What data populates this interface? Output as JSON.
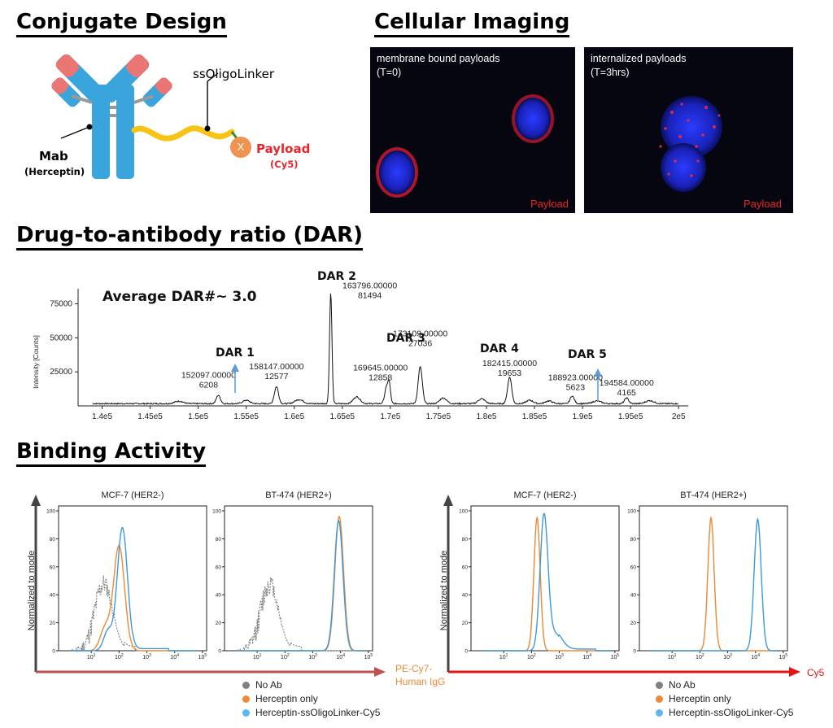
{
  "sections": {
    "conjugate": "Conjugate Design",
    "imaging": "Cellular Imaging",
    "dar": "Drug-to-antibody ratio (DAR)",
    "binding": "Binding Activity"
  },
  "conjugate": {
    "linker": "ssOligoLinker",
    "mab": "Mab",
    "mab_sub": "(Herceptin)",
    "payload": "Payload",
    "payload_sub": "(Cy5)",
    "x_symbol": "X"
  },
  "imaging": {
    "left_line1": "membrane bound payloads",
    "left_line2": "(T=0)",
    "right_line1": "internalized payloads",
    "right_line2": "(T=3hrs)",
    "payload_label": "Payload"
  },
  "colors": {
    "antibody": "#3aa4dd",
    "antibody_tip": "#e97673",
    "linker": "#f7c314",
    "payload": "#f0934e",
    "no_ab": "#808080",
    "herceptin": "#ee8a35",
    "conjugate": "#3e98dc",
    "arrow_left": "#c0504d",
    "arrow_right": "#e41414"
  },
  "dar_chart": {
    "average_label": "Average DAR#~ 3.0",
    "ylabel": "Intensity [Counts]",
    "yticks": [
      "25000",
      "50000",
      "75000"
    ],
    "xticks": [
      "1.4e5",
      "1.45e5",
      "1.5e5",
      "1.55e5",
      "1.6e5",
      "1.65e5",
      "1.7e5",
      "1.75e5",
      "1.8e5",
      "1.85e5",
      "1.9e5",
      "1.95e5",
      "2e5"
    ],
    "dar_labels": [
      "DAR 1",
      "DAR 2",
      "DAR 3",
      "DAR 4",
      "DAR 5"
    ],
    "annotations": [
      {
        "mass": "152097.00000",
        "count": "6208"
      },
      {
        "mass": "158147.00000",
        "count": "12577"
      },
      {
        "mass": "163796.00000",
        "count": "81494"
      },
      {
        "mass": "169645.00000",
        "count": "12858"
      },
      {
        "mass": "173109.00000",
        "count": "27036"
      },
      {
        "mass": "182415.00000",
        "count": "19653"
      },
      {
        "mass": "188923.00000",
        "count": "5623"
      },
      {
        "mass": "194584.00000",
        "count": "4165"
      }
    ]
  },
  "chart_data": [
    {
      "type": "line",
      "title": "",
      "xlabel": "",
      "ylabel": "Intensity [Counts]",
      "xlim": [
        137500,
        201000
      ],
      "ylim": [
        0,
        86000
      ],
      "peaks": [
        {
          "x": 152097,
          "y": 6208
        },
        {
          "x": 158147,
          "y": 12577
        },
        {
          "x": 163796,
          "y": 81494
        },
        {
          "x": 169645,
          "y": 12858
        },
        {
          "x": 173109,
          "y": 27036
        },
        {
          "x": 182415,
          "y": 19653
        },
        {
          "x": 188923,
          "y": 5623
        },
        {
          "x": 194584,
          "y": 4165
        }
      ]
    }
  ],
  "binding": {
    "panels": [
      "MCF-7 (HER2-)",
      "BT-474 (HER2+)",
      "MCF-7 (HER2-)",
      "BT-474 (HER2+)"
    ],
    "ylabel": "Normalized to mode",
    "yticks": [
      "0",
      "20",
      "40",
      "60",
      "80",
      "100"
    ],
    "xaxis_left_line1": "PE-Cy7-",
    "xaxis_left_line2": "Human IgG",
    "xaxis_right": "Cy5",
    "legend": [
      "No Ab",
      "Herceptin only",
      "Herceptin-ssOligoLinker-Cy5"
    ]
  }
}
